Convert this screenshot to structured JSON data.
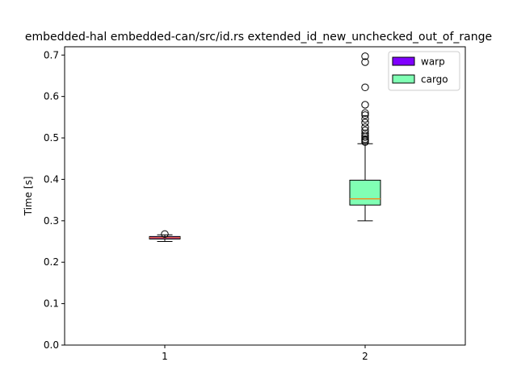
{
  "chart_data": {
    "type": "box",
    "title": "embedded-hal embedded-can/src/id.rs extended_id_new_unchecked_out_of_range",
    "xlabel": "",
    "ylabel": "Time [s]",
    "categories": [
      "1",
      "2"
    ],
    "ylim": [
      0.0,
      0.72
    ],
    "yticks": [
      0.0,
      0.1,
      0.2,
      0.3,
      0.4,
      0.5,
      0.6,
      0.7
    ],
    "ytick_labels": [
      "0.0",
      "0.1",
      "0.2",
      "0.3",
      "0.4",
      "0.5",
      "0.6",
      "0.7"
    ],
    "grid": false,
    "legend_position": "top-right",
    "series": [
      {
        "name": "warp",
        "color": "#8000ff",
        "position": 1,
        "whisker_low": 0.25,
        "q1": 0.256,
        "median": 0.259,
        "q3": 0.262,
        "whisker_high": 0.266,
        "outliers": [
          0.268
        ]
      },
      {
        "name": "cargo",
        "color": "#80ffb4",
        "position": 2,
        "whisker_low": 0.3,
        "q1": 0.338,
        "median": 0.353,
        "q3": 0.398,
        "whisker_high": 0.486,
        "outliers": [
          0.49,
          0.494,
          0.497,
          0.502,
          0.506,
          0.511,
          0.518,
          0.526,
          0.537,
          0.546,
          0.555,
          0.56,
          0.58,
          0.622,
          0.683,
          0.697
        ]
      }
    ],
    "median_color": "#ff7f0e"
  }
}
